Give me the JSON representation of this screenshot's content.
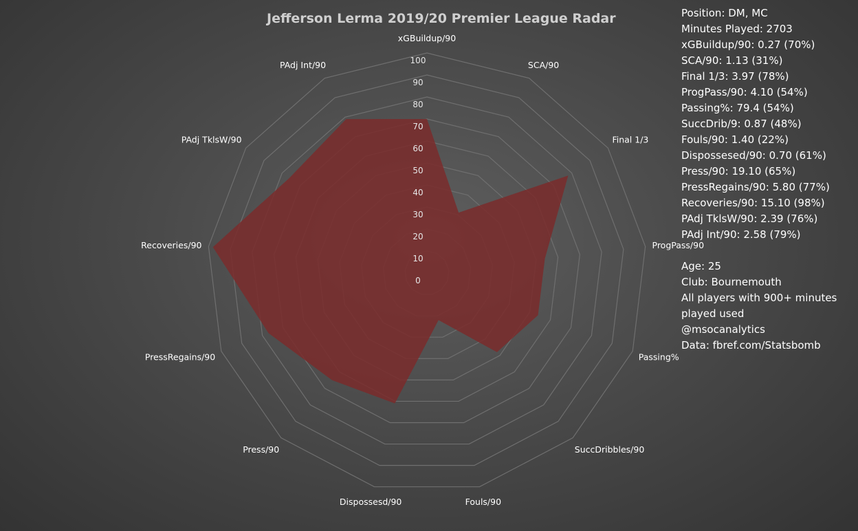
{
  "chart_data": {
    "type": "radar",
    "title": "Jefferson Lerma 2019/20 Premier League Radar",
    "axes": [
      "xGBuildup/90",
      "SCA/90",
      "Final 1/3",
      "ProgPass/90",
      "Passing%",
      "SuccDribbles/90",
      "Fouls/90",
      "Dispossesd/90",
      "Press/90",
      "PressRegains/90",
      "Recoveries/90",
      "PAdj TklsW/90",
      "PAdj Int/90"
    ],
    "tick_labels": [
      "0",
      "10",
      "20",
      "30",
      "40",
      "50",
      "60",
      "70",
      "80",
      "90",
      "100"
    ],
    "rlim": [
      0,
      100
    ],
    "series": [
      {
        "values": [
          70,
          31,
          78,
          54,
          54,
          48,
          22,
          61,
          65,
          77,
          98,
          76,
          79
        ],
        "color": "#7a2b2b"
      }
    ],
    "grid": true
  },
  "info": {
    "lines_top": [
      "Position: DM, MC",
      "Minutes Played: 2703",
      "xGBuildup/90: 0.27 (70%)",
      "SCA/90: 1.13 (31%)",
      "Final 1/3: 3.97 (78%)",
      "ProgPass/90: 4.10 (54%)",
      "Passing%: 79.4 (54%)",
      "SuccDrib/9: 0.87 (48%)",
      "Fouls/90: 1.40 (22%)",
      "Dispossesed/90: 0.70 (61%)",
      "Press/90: 19.10 (65%)",
      "PressRegains/90: 5.80 (77%)",
      "Recoveries/90: 15.10 (98%)",
      "PAdj TklsW/90: 2.39 (76%)",
      "PAdj Int/90: 2.58 (79%)"
    ],
    "lines_bottom": [
      "Age: 25",
      "Club: Bournemouth",
      "All players with 900+ minutes",
      "played used",
      "@msocanalytics",
      "Data: fbref.com/Statsbomb"
    ]
  },
  "colors": {
    "grid": "#6f6f6f",
    "text": "#ffffff",
    "title": "#cfcfcf",
    "fill": "#7a2b2b"
  }
}
